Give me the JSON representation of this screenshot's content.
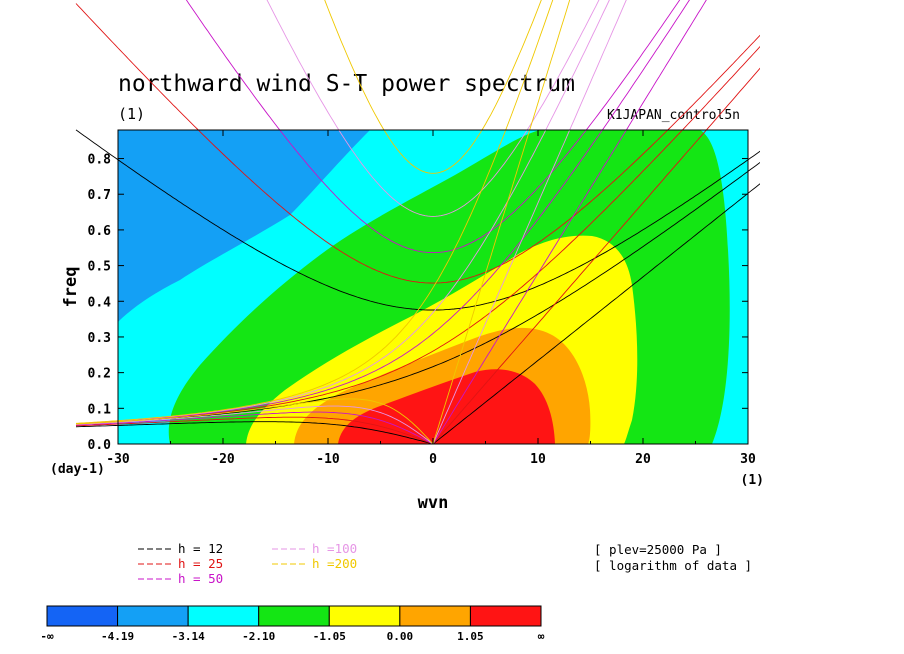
{
  "chart_data": {
    "type": "heatmap",
    "title": "northward wind S-T power spectrum",
    "subtitle": "(1)",
    "run_label": "K1JAPAN_control5n",
    "xlabel": "wvn",
    "ylabel": "freq",
    "x_unit": "(1)",
    "y_unit": "(day-1)",
    "xlim": [
      -30,
      30
    ],
    "ylim": [
      0,
      0.88
    ],
    "xticks": [
      "-30",
      "-20",
      "-10",
      "0",
      "10",
      "20",
      "30"
    ],
    "yticks": [
      "0.0",
      "0.1",
      "0.2",
      "0.3",
      "0.4",
      "0.5",
      "0.6",
      "0.7",
      "0.8"
    ],
    "contour_levels": [
      -4.19,
      -3.14,
      -2.1,
      -1.05,
      0.0,
      1.05
    ],
    "colorbar_labels": [
      "-∞",
      "-4.19",
      "-3.14",
      "-2.10",
      "-1.05",
      "0.00",
      "1.05",
      "∞"
    ],
    "colorbar_colors": [
      "#1464f5",
      "#14a0f5",
      "#00ffff",
      "#14e614",
      "#ffff00",
      "#ffa500",
      "#ff1414"
    ],
    "info_lines": [
      "[ plev=25000 Pa ]",
      "[ logarithm of data ]"
    ],
    "dispersion_curves": [
      {
        "label": "h = 12",
        "h": 12,
        "color": "#000000"
      },
      {
        "label": "h = 25",
        "h": 25,
        "color": "#e01414"
      },
      {
        "label": "h = 50",
        "h": 50,
        "color": "#c814c8"
      },
      {
        "label": "h =100",
        "h": 100,
        "color": "#e696e6"
      },
      {
        "label": "h =200",
        "h": 200,
        "color": "#f0c800"
      }
    ]
  }
}
